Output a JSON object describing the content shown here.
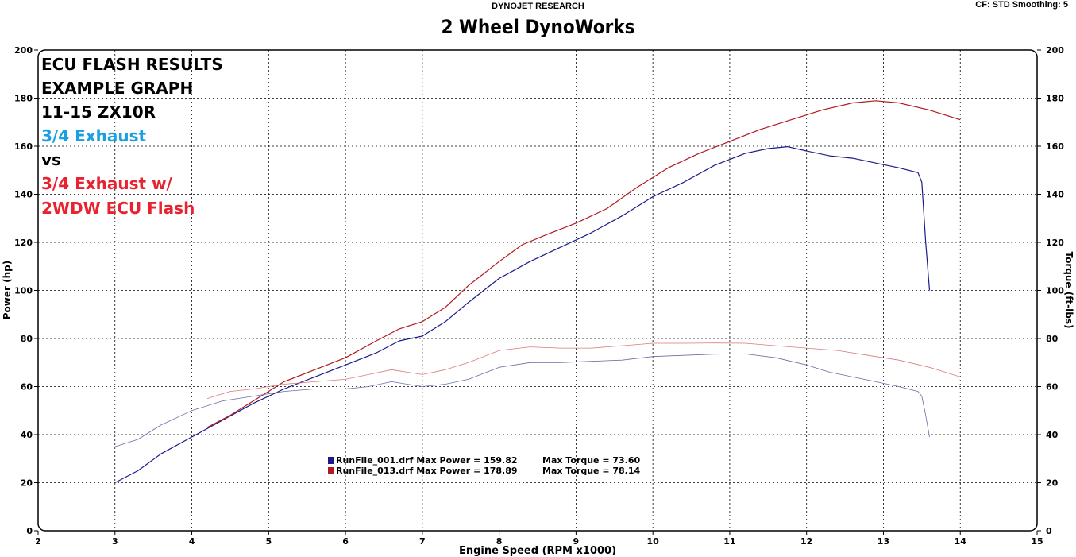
{
  "header": {
    "brand": "DYNOJET RESEARCH",
    "settings": "CF: STD  Smoothing: 5",
    "title": "2 Wheel DynoWorks"
  },
  "annotations": [
    {
      "text": "ECU FLASH RESULTS",
      "color": "#000000"
    },
    {
      "text": "EXAMPLE GRAPH",
      "color": "#000000"
    },
    {
      "text": "11-15 ZX10R",
      "color": "#000000"
    },
    {
      "text": "3/4 Exhaust",
      "color": "#1a9fe0"
    },
    {
      "text": "vs",
      "color": "#000000"
    },
    {
      "text": "3/4 Exhaust w/",
      "color": "#e8232f"
    },
    {
      "text": "2WDW ECU Flash",
      "color": "#e8232f"
    }
  ],
  "legend": [
    {
      "file": "RunFile_001.drf",
      "power": "Max Power = 159.82",
      "torque": "Max Torque = 73.60",
      "color": "#1a1a8c"
    },
    {
      "file": "RunFile_013.drf",
      "power": "Max Power = 178.89",
      "torque": "Max Torque = 78.14",
      "color": "#b3191e"
    }
  ],
  "chart_data": {
    "type": "line",
    "title": "2 Wheel DynoWorks",
    "xlabel": "Engine Speed (RPM x1000)",
    "ylabel": "Power (hp)",
    "y2label": "Torque (ft-lbs)",
    "xlim": [
      2,
      15
    ],
    "ylim": [
      0,
      200
    ],
    "y2lim": [
      0,
      200
    ],
    "xticks": [
      2,
      3,
      4,
      5,
      6,
      7,
      8,
      9,
      10,
      11,
      12,
      13,
      14,
      15
    ],
    "yticks": [
      0,
      20,
      40,
      60,
      80,
      100,
      120,
      140,
      160,
      180,
      200
    ],
    "grid": true,
    "series": [
      {
        "name": "RunFile_001.drf",
        "measure": "Power (hp)",
        "color": "#1a1a8c",
        "width": 1.2,
        "x": [
          3.0,
          3.3,
          3.6,
          4.0,
          4.4,
          4.8,
          5.2,
          5.6,
          6.0,
          6.4,
          6.7,
          7.0,
          7.3,
          7.6,
          8.0,
          8.4,
          8.8,
          9.2,
          9.6,
          10.0,
          10.4,
          10.8,
          11.2,
          11.5,
          11.75,
          12.0,
          12.3,
          12.6,
          12.9,
          13.2,
          13.45,
          13.5,
          13.55,
          13.6
        ],
        "y": [
          20,
          25,
          32,
          39,
          46,
          53,
          59,
          64,
          69,
          74,
          79,
          81,
          87,
          95,
          105,
          112,
          118,
          124,
          131,
          139,
          145,
          152,
          157,
          159,
          159.8,
          158,
          156,
          155,
          153,
          151,
          149,
          145,
          120,
          100
        ]
      },
      {
        "name": "RunFile_013.drf",
        "measure": "Power (hp)",
        "color": "#b3191e",
        "width": 1.2,
        "x": [
          4.2,
          4.5,
          4.8,
          5.2,
          5.6,
          6.0,
          6.4,
          6.7,
          7.0,
          7.3,
          7.6,
          8.0,
          8.3,
          8.6,
          9.0,
          9.4,
          9.8,
          10.2,
          10.6,
          11.0,
          11.4,
          11.8,
          12.2,
          12.6,
          12.9,
          13.2,
          13.6,
          14.0
        ],
        "y": [
          43,
          48,
          54,
          62,
          67,
          72,
          79,
          84,
          87,
          93,
          102,
          112,
          119,
          123,
          128,
          134,
          143,
          151,
          157,
          162,
          167,
          171,
          175,
          178,
          178.9,
          178,
          175,
          171
        ]
      },
      {
        "name": "RunFile_001.drf",
        "measure": "Torque (ft-lbs)",
        "color": "#6c6ca8",
        "width": 0.8,
        "x": [
          3.0,
          3.3,
          3.6,
          4.0,
          4.4,
          4.8,
          5.2,
          5.6,
          6.0,
          6.3,
          6.6,
          7.0,
          7.3,
          7.6,
          8.0,
          8.4,
          8.8,
          9.2,
          9.6,
          10.0,
          10.4,
          10.8,
          11.2,
          11.6,
          12.0,
          12.3,
          12.6,
          12.9,
          13.2,
          13.45,
          13.5,
          13.55,
          13.6
        ],
        "y": [
          35,
          38,
          44,
          50,
          54,
          56,
          58,
          59,
          59,
          60,
          62,
          60,
          61,
          63,
          68,
          70,
          70,
          70.5,
          71,
          72.5,
          73,
          73.5,
          73.6,
          72,
          69,
          66,
          64,
          62,
          60,
          58,
          56,
          48,
          39
        ]
      },
      {
        "name": "RunFile_013.drf",
        "measure": "Torque (ft-lbs)",
        "color": "#d87a7d",
        "width": 0.8,
        "x": [
          4.2,
          4.5,
          4.8,
          5.2,
          5.6,
          6.0,
          6.3,
          6.6,
          7.0,
          7.3,
          7.6,
          8.0,
          8.4,
          8.8,
          9.2,
          9.6,
          10.0,
          10.4,
          10.8,
          11.2,
          11.6,
          12.0,
          12.4,
          12.8,
          13.2,
          13.6,
          14.0
        ],
        "y": [
          55,
          58,
          59,
          61,
          62,
          63,
          65,
          67,
          65,
          67,
          70,
          75,
          76.5,
          76,
          76,
          77,
          78,
          78,
          78.1,
          78,
          77,
          76,
          75,
          73,
          71,
          68,
          64
        ]
      }
    ]
  }
}
